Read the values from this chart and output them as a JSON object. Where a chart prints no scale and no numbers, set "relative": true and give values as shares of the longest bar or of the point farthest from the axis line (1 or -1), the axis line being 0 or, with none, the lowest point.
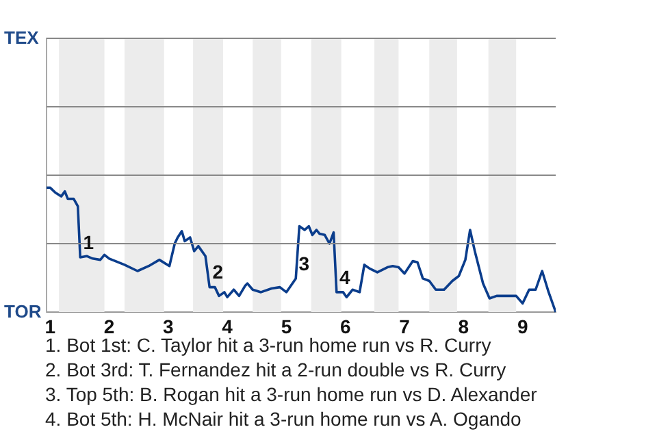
{
  "chart_data": {
    "type": "line",
    "relative": true,
    "x": [
      0.94,
      1,
      1.09,
      1.19,
      1.25,
      1.3,
      1.4,
      1.47,
      1.51,
      1.62,
      1.72,
      1.85,
      1.92,
      2,
      2.26,
      2.48,
      2.67,
      2.85,
      3.02,
      3.11,
      3.16,
      3.23,
      3.28,
      3.37,
      3.44,
      3.51,
      3.63,
      3.7,
      3.79,
      3.86,
      3.95,
      4,
      4.11,
      4.2,
      4.3,
      4.34,
      4.43,
      4.57,
      4.75,
      4.89,
      5,
      5.16,
      5.22,
      5.31,
      5.38,
      5.44,
      5.51,
      5.56,
      5.65,
      5.73,
      5.8,
      5.85,
      5.96,
      6.02,
      6.12,
      6.24,
      6.32,
      6.41,
      6.54,
      6.71,
      6.8,
      6.9,
      7,
      7.14,
      7.22,
      7.31,
      7.42,
      7.53,
      7.67,
      7.81,
      7.92,
      8.03,
      8.11,
      8.19,
      8.33,
      8.44,
      8.56,
      8.89,
      9,
      9.11,
      9.22,
      9.33,
      9.44,
      9.56
    ],
    "series": [
      {
        "color": "#0b3d8c",
        "values": [
          1,
          1,
          0.96,
          0.93,
          0.97,
          0.91,
          0.91,
          0.85,
          0.44,
          0.45,
          0.43,
          0.42,
          0.46,
          0.43,
          0.38,
          0.33,
          0.37,
          0.42,
          0.37,
          0.55,
          0.6,
          0.65,
          0.57,
          0.6,
          0.49,
          0.53,
          0.45,
          0.2,
          0.2,
          0.13,
          0.16,
          0.12,
          0.18,
          0.13,
          0.21,
          0.23,
          0.18,
          0.16,
          0.19,
          0.2,
          0.16,
          0.27,
          0.69,
          0.66,
          0.69,
          0.62,
          0.66,
          0.63,
          0.62,
          0.55,
          0.64,
          0.16,
          0.16,
          0.12,
          0.18,
          0.16,
          0.38,
          0.35,
          0.32,
          0.36,
          0.37,
          0.36,
          0.31,
          0.41,
          0.4,
          0.27,
          0.25,
          0.18,
          0.18,
          0.25,
          0.29,
          0.42,
          0.66,
          0.49,
          0.23,
          0.11,
          0.13,
          0.13,
          0.07,
          0.18,
          0.18,
          0.33,
          0.16,
          0
        ]
      }
    ],
    "xlim": [
      0.94,
      9.56
    ],
    "xticks": [
      1,
      2,
      3,
      4,
      5,
      6,
      7,
      8,
      9
    ],
    "ref_lines": [
      {
        "axis": "y",
        "value": 0.55,
        "color": "#888888"
      },
      {
        "axis": "y",
        "value": 1.1,
        "color": "#888888"
      },
      {
        "axis": "y",
        "value": 1.65,
        "color": "#888888"
      },
      {
        "axis": "y",
        "value": 2.2,
        "color": "#888888"
      }
    ],
    "legend": false,
    "marker": "none",
    "line_style": "solid",
    "bands": [
      {
        "axis": "x",
        "from": 1.15,
        "to": 1.92,
        "color": "#ececec"
      },
      {
        "axis": "x",
        "from": 2.26,
        "to": 2.93,
        "color": "#ececec"
      },
      {
        "axis": "x",
        "from": 3.42,
        "to": 3.93,
        "color": "#ececec"
      },
      {
        "axis": "x",
        "from": 4.43,
        "to": 4.91,
        "color": "#ececec"
      },
      {
        "axis": "x",
        "from": 5.42,
        "to": 5.93,
        "color": "#ececec"
      },
      {
        "axis": "x",
        "from": 6.49,
        "to": 6.9,
        "color": "#ececec"
      },
      {
        "axis": "x",
        "from": 7.42,
        "to": 7.89,
        "color": "#ececec"
      },
      {
        "axis": "x",
        "from": 8.42,
        "to": 8.89,
        "color": "#ececec"
      }
    ],
    "annotations": [
      "TEX",
      "TOR",
      {
        "text": "1",
        "x": 1.51,
        "y": 0.44
      },
      {
        "text": "2",
        "x": 3.7,
        "y": 0.2
      },
      {
        "text": "3",
        "x": 5.16,
        "y": 0.27
      },
      {
        "text": "4",
        "x": 5.85,
        "y": 0.16
      },
      "1. Bot 1st: C. Taylor hit a 3-run home run vs R. Curry",
      "2. Bot 3rd: T. Fernandez hit a 2-run double vs R. Curry",
      "3. Top 5th: B. Rogan hit a 3-run home run vs D. Alexander",
      "4. Bot 5th: H. McNair hit a 3-run home run vs A. Ogando"
    ]
  }
}
